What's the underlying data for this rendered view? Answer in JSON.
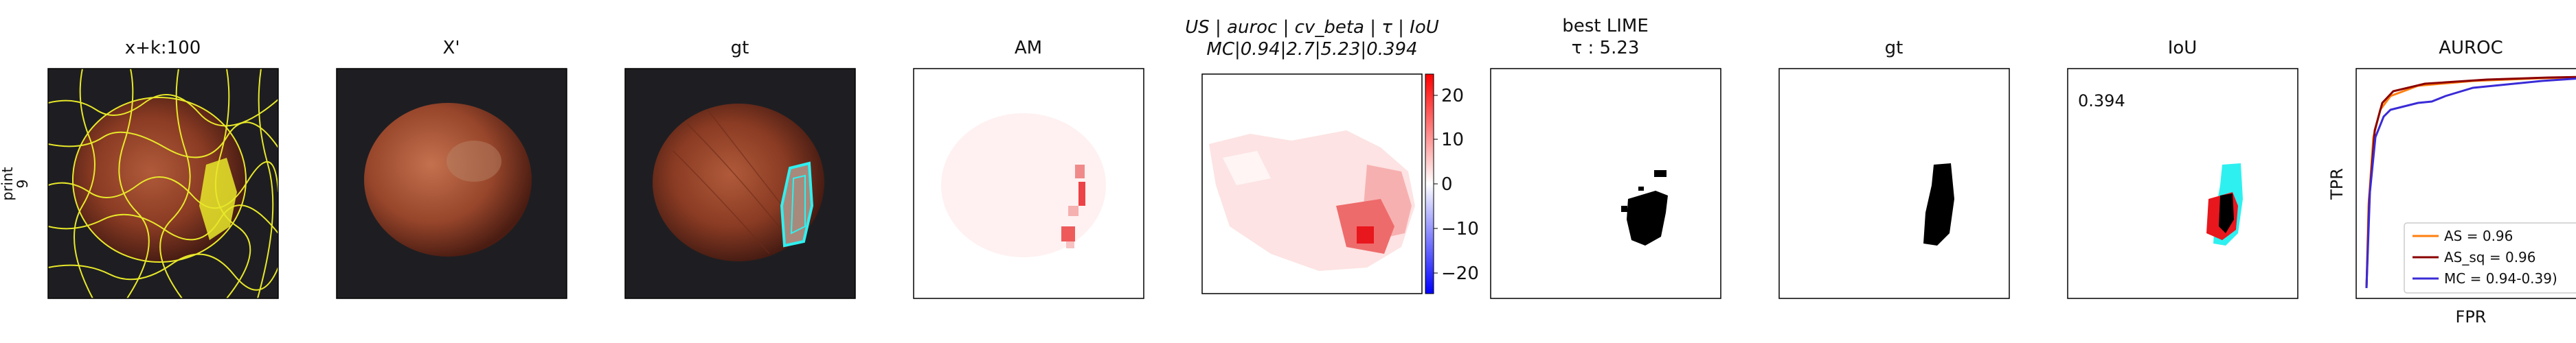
{
  "row_label": {
    "line1": "print",
    "line2": "9"
  },
  "panels": [
    {
      "title": "x+k:100"
    },
    {
      "title": "X'"
    },
    {
      "title": "gt"
    },
    {
      "title": "AM"
    },
    {
      "title_line1": "US | auroc | cv_beta | τ | IoU",
      "title_line2": "MC|0.94|2.7|5.23|0.394"
    },
    {
      "title_line1": "best LIME",
      "title_line2": "τ : 5.23"
    },
    {
      "title": "gt"
    },
    {
      "title": "IoU",
      "annotation": "0.394"
    },
    {
      "title": "AUROC"
    }
  ],
  "colorbar": {
    "ticks": [
      "20",
      "10",
      "0",
      "−10",
      "−20"
    ],
    "colormap": [
      "#0000ff",
      "#ffffff",
      "#ff0000"
    ]
  },
  "auroc_plot": {
    "xlabel": "FPR",
    "ylabel": "TPR",
    "legend": [
      {
        "label": "AS = 0.96",
        "color": "#ff7f0e"
      },
      {
        "label": "AS_sq = 0.96",
        "color": "#8b0000"
      },
      {
        "label": "MC = 0.94-0.39)",
        "color": "#3a2bd6"
      }
    ]
  },
  "colors": {
    "overlay_yellow": "#e8e82a",
    "gt_cyan": "#2ff0f0",
    "heat_red": "#e8161d",
    "hazelnut": "#8a3b23",
    "background_dark": "#1e1e22"
  }
}
